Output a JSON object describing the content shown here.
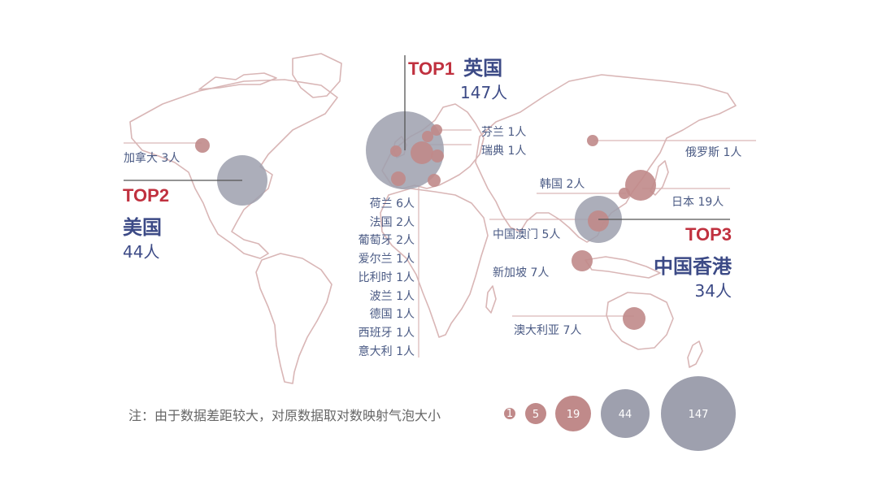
{
  "colors": {
    "map_outline": "#d9b6b6",
    "bubble_gray": "#9ea0ae",
    "bubble_pink": "#c08a8a",
    "accent_red": "#c0313f",
    "accent_blue": "#3c4a86",
    "label_blue": "#4a5a84"
  },
  "top": [
    {
      "rank_label": "TOP1",
      "name": "英国",
      "count": "147人",
      "value": 147
    },
    {
      "rank_label": "TOP2",
      "name": "美国",
      "count": "44人",
      "value": 44
    },
    {
      "rank_label": "TOP3",
      "name": "中国香港",
      "count": "34人",
      "value": 34
    }
  ],
  "labels": {
    "canada": "加拿大 3人",
    "finland": "芬兰  1人",
    "sweden": "瑞典  1人",
    "russia": "俄罗斯 1人",
    "korea": "韩国  2人",
    "japan": "日本  19人",
    "macau": "中国澳门 5人",
    "singapore": "新加坡 7人",
    "australia": "澳大利亚 7人"
  },
  "europe_list": [
    "荷兰  6人",
    "法国  2人",
    "葡萄牙  2人",
    "爱尔兰  1人",
    "比利时  1人",
    "波兰  1人",
    "德国  1人",
    "西班牙  1人",
    "意大利  1人"
  ],
  "note": "注：由于数据差距较大，对原数据取对数映射气泡大小",
  "legend": [
    {
      "label": "1",
      "value": 1,
      "color": "pink"
    },
    {
      "label": "5",
      "value": 5,
      "color": "pink"
    },
    {
      "label": "19",
      "value": 19,
      "color": "pink"
    },
    {
      "label": "44",
      "value": 44,
      "color": "gray"
    },
    {
      "label": "147",
      "value": 147,
      "color": "gray"
    }
  ]
}
